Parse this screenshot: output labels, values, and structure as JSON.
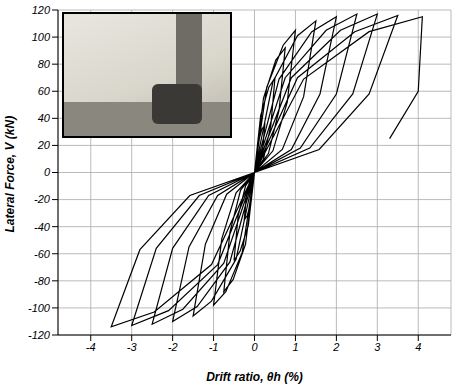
{
  "chart_data": {
    "type": "line",
    "x_label": "Drift ratio, θh (%)",
    "y_label": "Lateral Force, V (kN)",
    "xlim": [
      -4.8,
      4.8
    ],
    "xticks": [
      -4,
      -3,
      -2,
      -1,
      0,
      1,
      2,
      3,
      4
    ],
    "ylim": [
      -120,
      120
    ],
    "yticks": [
      -120,
      -100,
      -80,
      -60,
      -40,
      -20,
      0,
      20,
      40,
      60,
      80,
      100,
      120
    ],
    "grid": true,
    "x": [
      0,
      0.08,
      0.18,
      0.25,
      0.2,
      0.11,
      0,
      -0.08,
      -0.18,
      -0.25,
      -0.2,
      -0.11,
      0,
      0.15,
      0.35,
      0.5,
      0.4,
      0.22,
      0,
      -0.15,
      -0.35,
      -0.5,
      -0.4,
      -0.22,
      0,
      0.22,
      0.52,
      0.75,
      0.6,
      0.34,
      0,
      -0.22,
      -0.52,
      -0.75,
      -0.6,
      -0.34,
      0,
      0.3,
      0.7,
      1.0,
      0.8,
      0.45,
      0,
      -0.3,
      -0.7,
      -1.0,
      -0.8,
      -0.45,
      0,
      0.45,
      1.05,
      1.5,
      1.2,
      0.68,
      0,
      -0.45,
      -1.05,
      -1.5,
      -1.2,
      -0.68,
      0,
      0.6,
      1.4,
      2.0,
      1.6,
      0.9,
      0,
      -0.6,
      -1.4,
      -2.0,
      -1.6,
      -0.9,
      0,
      0.75,
      1.75,
      2.5,
      2.0,
      1.12,
      0,
      -0.75,
      -1.75,
      -2.5,
      -2.0,
      -1.12,
      0,
      0.9,
      2.1,
      3.0,
      2.4,
      1.35,
      0,
      -0.9,
      -2.1,
      -3.0,
      -2.4,
      -1.35,
      0,
      1.05,
      2.45,
      3.5,
      2.8,
      1.58,
      0,
      -1.05,
      -2.45,
      -3.5,
      -2.8,
      -1.58,
      0,
      1.2,
      2.8,
      4.1,
      4.0,
      3.3
    ],
    "series": [
      {
        "color": "#000000",
        "values": [
          0,
          21,
          32,
          35,
          18,
          5,
          0,
          -21,
          -32,
          -35,
          -18,
          -5,
          0,
          42,
          63,
          70,
          35,
          10,
          0,
          -39,
          -58,
          -65,
          -32,
          -10,
          0,
          55,
          83,
          92,
          46,
          14,
          0,
          -53,
          -79,
          -88,
          -44,
          -13,
          0,
          63,
          94,
          105,
          52,
          16,
          0,
          -59,
          -88,
          -98,
          -49,
          -15,
          0,
          67,
          101,
          112,
          56,
          17,
          0,
          -64,
          -95,
          -106,
          -53,
          -16,
          0,
          69,
          104,
          115,
          58,
          17,
          0,
          -66,
          -99,
          -110,
          -55,
          -17,
          0,
          70,
          105,
          117,
          58,
          18,
          0,
          -67,
          -101,
          -112,
          -56,
          -17,
          0,
          70,
          105,
          117,
          58,
          18,
          0,
          -68,
          -102,
          -113,
          -56,
          -17,
          0,
          70,
          104,
          116,
          58,
          17,
          0,
          -68,
          -103,
          -114,
          -57,
          -17,
          0,
          69,
          104,
          115,
          60,
          25
        ]
      }
    ]
  }
}
